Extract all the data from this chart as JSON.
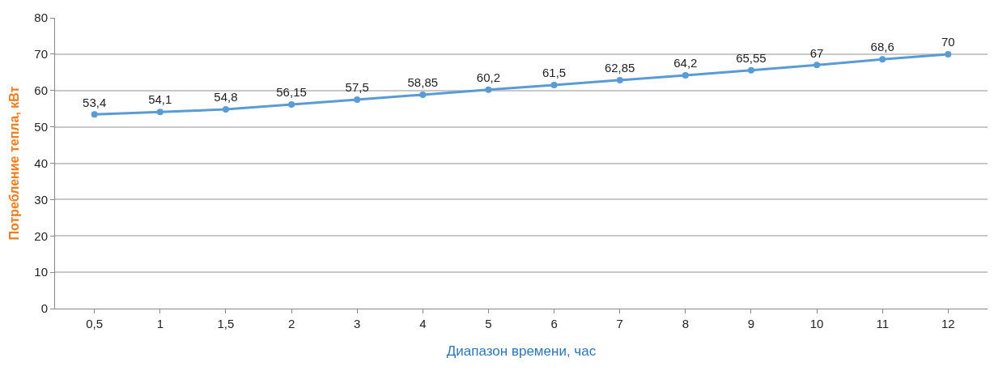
{
  "chart_data": {
    "type": "line",
    "xlabel": "Диапазон времени, час",
    "ylabel": "Потребление тепла, кВт",
    "categories": [
      "0,5",
      "1",
      "1,5",
      "2",
      "3",
      "4",
      "5",
      "6",
      "7",
      "8",
      "9",
      "10",
      "11",
      "12"
    ],
    "series": [
      {
        "color": "#5b9bd5",
        "values": [
          53.4,
          54.1,
          54.8,
          56.15,
          57.5,
          58.85,
          60.2,
          61.5,
          62.85,
          64.2,
          65.55,
          67,
          68.6,
          70
        ],
        "value_labels": [
          "53,4",
          "54,1",
          "54,8",
          "56,15",
          "57,5",
          "58,85",
          "60,2",
          "61,5",
          "62,85",
          "64,2",
          "65,55",
          "67",
          "68,6",
          "70"
        ]
      }
    ],
    "ylim": [
      0,
      80
    ],
    "yticks": [
      0,
      10,
      20,
      30,
      40,
      50,
      60,
      70,
      80
    ],
    "grid": "y",
    "legend": false,
    "marker": "circle",
    "line_style": "solid"
  }
}
